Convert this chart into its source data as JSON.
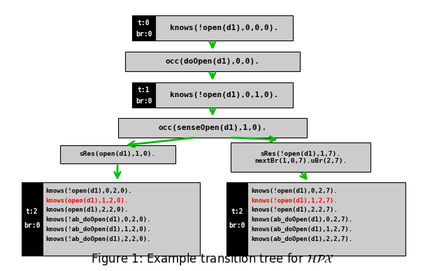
{
  "title": "Figure 1: Example transition tree for $\\mathcal{HPX}$",
  "title_fontsize": 12,
  "bg_color": "#ffffff",
  "node_bg_light": "#cccccc",
  "node_bg_dark": "#000000",
  "node_text_white": "#ffffff",
  "node_text_black": "#000000",
  "node_text_red": "#ff0000",
  "arrow_color": "#00bb00",
  "lines_left": [
    [
      "knows(!open(d1),0,2,0).",
      false
    ],
    [
      "knows(open(d1),1,2,0).",
      true
    ],
    [
      "knows(open(d1),2,2,0).",
      false
    ],
    [
      "knows(!ab_doOpen(d1),0,2,0).",
      false
    ],
    [
      "knows(!ab_doOpen(d1),1,2,0).",
      false
    ],
    [
      "knows(!ab_doOpen(d1),2,2,0).",
      false
    ]
  ],
  "lines_right": [
    [
      "knows(!open(d1),0,2,7).",
      false
    ],
    [
      "knows(!open(d1),1,2,7).",
      true
    ],
    [
      "knows(!open(d1),2,2,7).",
      false
    ],
    [
      "knows(ab_doOpen(d1),0,2,7).",
      false
    ],
    [
      "knows(ab_doOpen(d1),1,2,7).",
      false
    ],
    [
      "knows(ab_doOpen(d1),2,2,7).",
      false
    ]
  ]
}
